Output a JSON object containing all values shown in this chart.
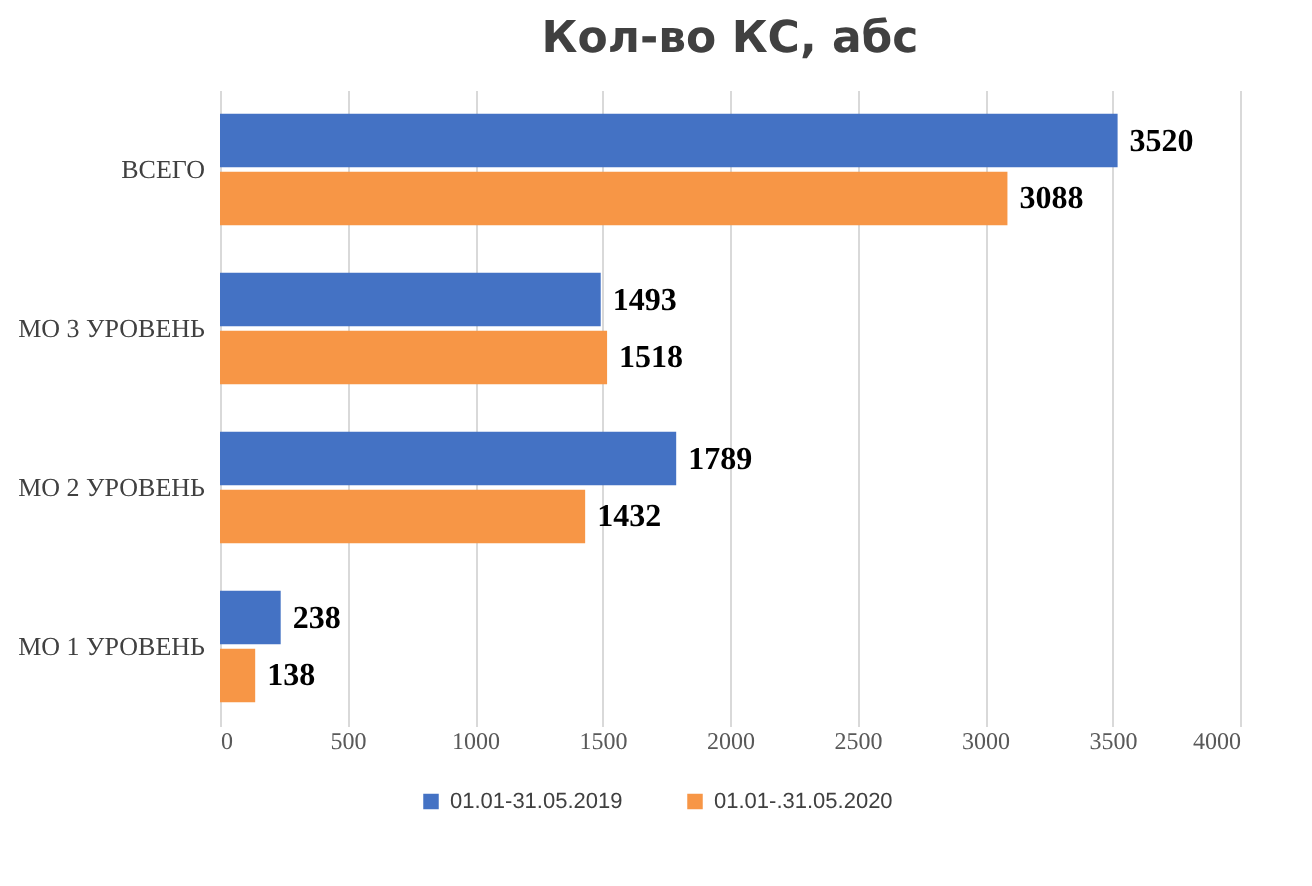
{
  "chart_data": {
    "type": "bar",
    "orientation": "horizontal",
    "title": "Кол-во КС, абс",
    "categories": [
      "ВСЕГО",
      "МО 3 УРОВЕНЬ",
      "МО 2 УРОВЕНЬ",
      "МО 1 УРОВЕНЬ"
    ],
    "series": [
      {
        "name": "01.01-31.05.2019",
        "color": "#4472c4",
        "values": [
          3520,
          1493,
          1789,
          238
        ]
      },
      {
        "name": "01.01-.31.05.2020",
        "color": "#f79646",
        "values": [
          3088,
          1518,
          1432,
          138
        ]
      }
    ],
    "xlim": [
      0,
      4000
    ],
    "xticks": [
      0,
      500,
      1000,
      1500,
      2000,
      2500,
      3000,
      3500,
      4000
    ],
    "grid": "x",
    "legend": "bottom",
    "data_labels": true
  }
}
